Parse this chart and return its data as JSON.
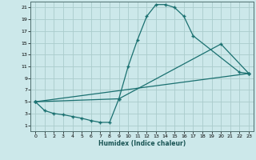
{
  "xlabel": "Humidex (Indice chaleur)",
  "bg_color": "#cce8ea",
  "grid_color": "#aacccc",
  "line_color": "#1a7070",
  "xlim": [
    -0.5,
    23.5
  ],
  "ylim": [
    0,
    22
  ],
  "xticks": [
    0,
    1,
    2,
    3,
    4,
    5,
    6,
    7,
    8,
    9,
    10,
    11,
    12,
    13,
    14,
    15,
    16,
    17,
    18,
    19,
    20,
    21,
    22,
    23
  ],
  "yticks": [
    1,
    3,
    5,
    7,
    9,
    11,
    13,
    15,
    17,
    19,
    21
  ],
  "line1_x": [
    0,
    1,
    2,
    3,
    4,
    5,
    6,
    7,
    8,
    9,
    10,
    11,
    12,
    13,
    14,
    15,
    16,
    17,
    22,
    23
  ],
  "line1_y": [
    5,
    3.5,
    3,
    2.8,
    2.5,
    2.2,
    1.8,
    1.5,
    1.5,
    5.5,
    11,
    15.5,
    19.5,
    21.5,
    21.5,
    21.0,
    19.5,
    16.2,
    10.0,
    9.8
  ],
  "line2_x": [
    0,
    23
  ],
  "line2_y": [
    5,
    9.8
  ],
  "line3_x": [
    0,
    9,
    20,
    23
  ],
  "line3_y": [
    5,
    5.5,
    14.8,
    9.8
  ]
}
